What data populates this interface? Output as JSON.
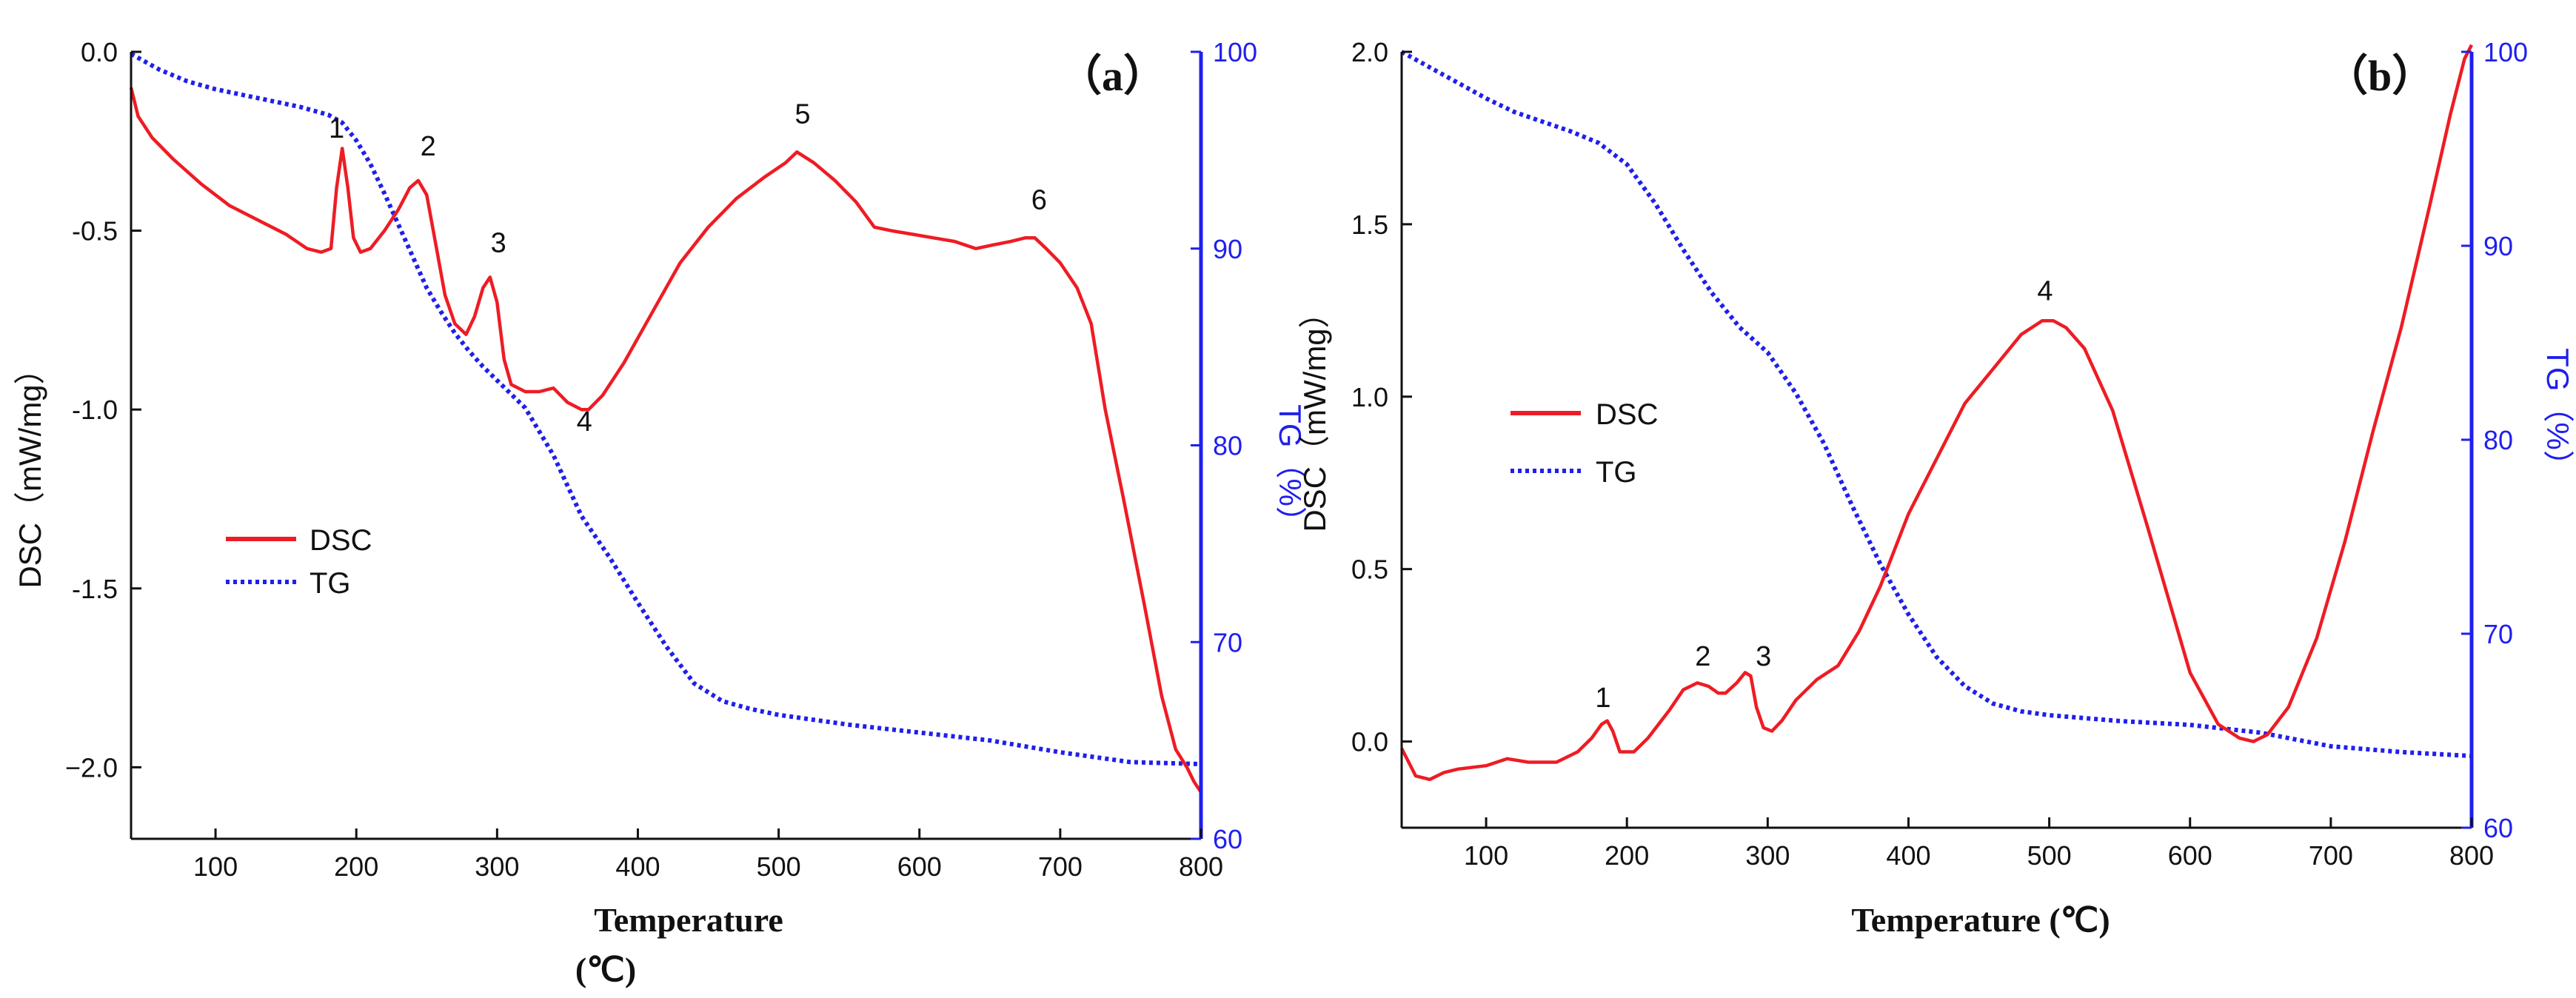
{
  "colors": {
    "dsc": "#ee1c24",
    "tg": "#1f1fee",
    "axis": "#111111"
  },
  "chart_data": [
    {
      "panel_label": "（a）",
      "type": "line",
      "xlabel_line1": "Temperature",
      "xlabel_line2": "(℃)",
      "ylabel": "DSC（mW/mg）",
      "y2label": "TG（%）",
      "xlim": [
        40,
        800
      ],
      "ylim": [
        -2.2,
        0.0
      ],
      "y2lim": [
        60,
        100
      ],
      "xticks": [
        100,
        200,
        300,
        400,
        500,
        600,
        700,
        800
      ],
      "yticks": [
        0.0,
        -0.5,
        -1.0,
        -1.5,
        -2.0
      ],
      "ytick_labels": [
        "0.0",
        "-0.5",
        "-1.0",
        "-1.5",
        "−2.0"
      ],
      "y2ticks": [
        60,
        70,
        80,
        90,
        100
      ],
      "legend": [
        "DSC",
        "TG"
      ],
      "legend_position": "center-left",
      "series": [
        {
          "name": "DSC",
          "axis": "left",
          "style": "solid",
          "x": [
            40,
            45,
            55,
            70,
            90,
            110,
            130,
            150,
            165,
            175,
            182,
            186,
            190,
            194,
            198,
            203,
            210,
            220,
            230,
            238,
            244,
            250,
            257,
            263,
            270,
            278,
            284,
            290,
            295,
            300,
            305,
            310,
            320,
            330,
            340,
            350,
            360,
            365,
            375,
            390,
            410,
            430,
            450,
            470,
            490,
            505,
            513,
            525,
            540,
            555,
            568,
            580,
            595,
            610,
            625,
            640,
            652,
            665,
            675,
            682,
            690,
            700,
            712,
            722,
            732,
            745,
            760,
            772,
            782,
            790,
            795,
            800
          ],
          "values": [
            -0.1,
            -0.18,
            -0.24,
            -0.3,
            -0.37,
            -0.43,
            -0.47,
            -0.51,
            -0.55,
            -0.56,
            -0.55,
            -0.38,
            -0.27,
            -0.38,
            -0.52,
            -0.56,
            -0.55,
            -0.5,
            -0.44,
            -0.38,
            -0.36,
            -0.4,
            -0.55,
            -0.68,
            -0.76,
            -0.79,
            -0.74,
            -0.66,
            -0.63,
            -0.7,
            -0.86,
            -0.93,
            -0.95,
            -0.95,
            -0.94,
            -0.98,
            -1.0,
            -1.0,
            -0.96,
            -0.87,
            -0.73,
            -0.59,
            -0.49,
            -0.41,
            -0.35,
            -0.31,
            -0.28,
            -0.31,
            -0.36,
            -0.42,
            -0.49,
            -0.5,
            -0.51,
            -0.52,
            -0.53,
            -0.55,
            -0.54,
            -0.53,
            -0.52,
            -0.52,
            -0.55,
            -0.59,
            -0.66,
            -0.76,
            -1.0,
            -1.25,
            -1.55,
            -1.8,
            -1.95,
            -2.0,
            -2.04,
            -2.07
          ]
        },
        {
          "name": "TG",
          "axis": "right",
          "style": "dotted",
          "x": [
            40,
            60,
            80,
            100,
            120,
            140,
            160,
            180,
            190,
            200,
            210,
            220,
            230,
            240,
            250,
            260,
            270,
            280,
            290,
            300,
            320,
            340,
            360,
            380,
            400,
            420,
            440,
            460,
            480,
            500,
            550,
            600,
            650,
            700,
            750,
            800
          ],
          "values": [
            99.9,
            99.1,
            98.5,
            98.1,
            97.8,
            97.5,
            97.2,
            96.8,
            96.4,
            95.5,
            94.3,
            92.8,
            91.2,
            89.6,
            88.0,
            86.8,
            85.7,
            84.8,
            84.0,
            83.3,
            81.9,
            79.5,
            76.4,
            74.3,
            72.0,
            69.8,
            67.9,
            67.0,
            66.6,
            66.3,
            65.8,
            65.4,
            65.0,
            64.4,
            63.9,
            63.8
          ]
        }
      ],
      "annotations": [
        {
          "text": "1",
          "x": 186,
          "y": -0.24
        },
        {
          "text": "2",
          "x": 251,
          "y": -0.29
        },
        {
          "text": "3",
          "x": 301,
          "y": -0.56
        },
        {
          "text": "4",
          "x": 362,
          "y": -1.06
        },
        {
          "text": "5",
          "x": 517,
          "y": -0.2
        },
        {
          "text": "6",
          "x": 685,
          "y": -0.44
        }
      ]
    },
    {
      "panel_label": "（b）",
      "type": "line",
      "xlabel": "Temperature (℃)",
      "ylabel": "DSC（mW/mg）",
      "y2label": "TG（%）",
      "xlim": [
        40,
        800
      ],
      "ylim": [
        -0.25,
        2.0
      ],
      "y2lim": [
        60,
        100
      ],
      "xticks": [
        100,
        200,
        300,
        400,
        500,
        600,
        700,
        800
      ],
      "yticks": [
        0.0,
        0.5,
        1.0,
        1.5,
        2.0
      ],
      "ytick_labels": [
        "0.0",
        "0.5",
        "1.0",
        "1.5",
        "2.0"
      ],
      "y2ticks": [
        60,
        70,
        80,
        90,
        100
      ],
      "legend": [
        "DSC",
        "TG"
      ],
      "legend_position": "center-left",
      "series": [
        {
          "name": "DSC",
          "axis": "left",
          "style": "solid",
          "x": [
            40,
            50,
            60,
            70,
            80,
            100,
            115,
            130,
            150,
            165,
            175,
            182,
            186,
            190,
            195,
            205,
            215,
            230,
            240,
            250,
            258,
            265,
            270,
            278,
            284,
            288,
            292,
            297,
            303,
            310,
            320,
            335,
            350,
            365,
            380,
            400,
            420,
            440,
            460,
            480,
            495,
            503,
            512,
            525,
            545,
            570,
            600,
            620,
            635,
            645,
            655,
            670,
            690,
            710,
            730,
            750,
            770,
            785,
            795,
            800
          ],
          "values": [
            -0.02,
            -0.1,
            -0.11,
            -0.09,
            -0.08,
            -0.07,
            -0.05,
            -0.06,
            -0.06,
            -0.03,
            0.01,
            0.05,
            0.06,
            0.03,
            -0.03,
            -0.03,
            0.01,
            0.09,
            0.15,
            0.17,
            0.16,
            0.14,
            0.14,
            0.17,
            0.2,
            0.19,
            0.1,
            0.04,
            0.03,
            0.06,
            0.12,
            0.18,
            0.22,
            0.32,
            0.45,
            0.66,
            0.82,
            0.98,
            1.08,
            1.18,
            1.22,
            1.22,
            1.2,
            1.14,
            0.96,
            0.62,
            0.2,
            0.05,
            0.01,
            0.0,
            0.02,
            0.1,
            0.3,
            0.58,
            0.9,
            1.2,
            1.55,
            1.82,
            1.98,
            2.02
          ]
        },
        {
          "name": "TG",
          "axis": "right",
          "style": "dotted",
          "x": [
            40,
            60,
            80,
            100,
            120,
            140,
            160,
            180,
            200,
            220,
            240,
            260,
            280,
            300,
            320,
            340,
            360,
            380,
            400,
            420,
            440,
            460,
            480,
            500,
            550,
            600,
            650,
            700,
            750,
            800
          ],
          "values": [
            100.0,
            99.2,
            98.4,
            97.6,
            96.9,
            96.4,
            95.9,
            95.3,
            94.2,
            92.2,
            89.8,
            87.6,
            85.8,
            84.5,
            82.4,
            79.8,
            76.6,
            73.6,
            71.0,
            68.8,
            67.3,
            66.4,
            66.0,
            65.8,
            65.5,
            65.3,
            64.9,
            64.2,
            63.9,
            63.7
          ]
        }
      ],
      "annotations": [
        {
          "text": "1",
          "x": 183,
          "y": 0.1
        },
        {
          "text": "2",
          "x": 254,
          "y": 0.22
        },
        {
          "text": "3",
          "x": 297,
          "y": 0.22
        },
        {
          "text": "4",
          "x": 497,
          "y": 1.28
        }
      ]
    }
  ]
}
